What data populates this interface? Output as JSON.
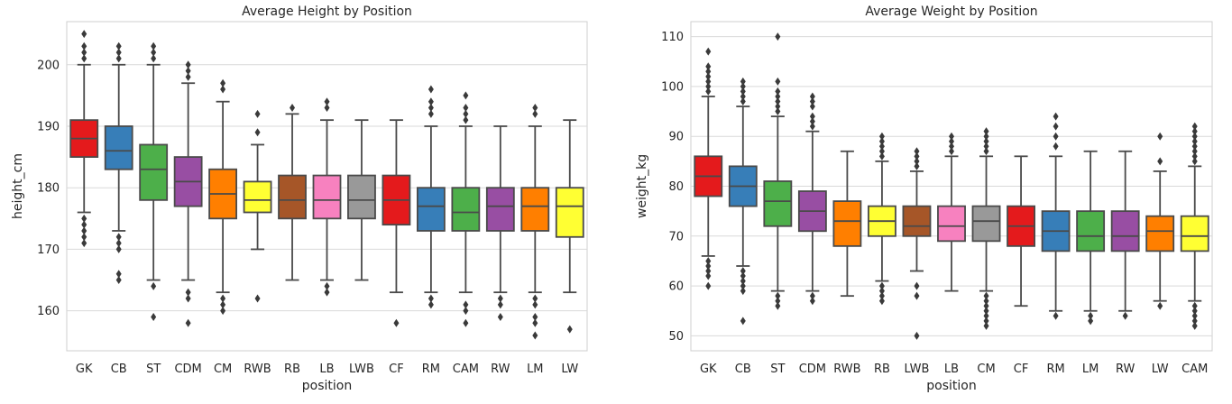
{
  "palette": [
    "#e41a1c",
    "#377eb8",
    "#4daf4a",
    "#984ea3",
    "#ff7f00",
    "#ffff33",
    "#a65628",
    "#f781bf",
    "#999999"
  ],
  "frame_color": "#cfcfcf",
  "grid_color": "#d9d9d9",
  "box_edge_color": "#4a4a4a",
  "chart_data": [
    {
      "type": "box",
      "title": "Average Height by Position",
      "xlabel": "position",
      "ylabel": "height_cm",
      "ylim": [
        153.5,
        207
      ],
      "yticks": [
        160,
        170,
        180,
        190,
        200
      ],
      "grid": "horizontal",
      "categories": [
        "GK",
        "CB",
        "ST",
        "CDM",
        "CM",
        "RWB",
        "RB",
        "LB",
        "LWB",
        "CF",
        "RM",
        "CAM",
        "RW",
        "LM",
        "LW"
      ],
      "boxes": [
        {
          "q1": 185,
          "median": 188,
          "q3": 191,
          "whislo": 176,
          "whishi": 200,
          "fliers": [
            171,
            172,
            173,
            174,
            175,
            201,
            202,
            203,
            205
          ]
        },
        {
          "q1": 183,
          "median": 186,
          "q3": 190,
          "whislo": 173,
          "whishi": 200,
          "fliers": [
            165,
            166,
            170,
            171,
            172,
            201,
            202,
            203
          ]
        },
        {
          "q1": 178,
          "median": 183,
          "q3": 187,
          "whislo": 165,
          "whishi": 200,
          "fliers": [
            159,
            164,
            201,
            202,
            203
          ]
        },
        {
          "q1": 177,
          "median": 181,
          "q3": 185,
          "whislo": 165,
          "whishi": 197,
          "fliers": [
            158,
            162,
            163,
            198,
            199,
            200
          ]
        },
        {
          "q1": 175,
          "median": 179,
          "q3": 183,
          "whislo": 163,
          "whishi": 194,
          "fliers": [
            160,
            161,
            162,
            196,
            197
          ]
        },
        {
          "q1": 176,
          "median": 178,
          "q3": 181,
          "whislo": 170,
          "whishi": 187,
          "fliers": [
            162,
            189,
            192
          ]
        },
        {
          "q1": 175,
          "median": 178,
          "q3": 182,
          "whislo": 165,
          "whishi": 192,
          "fliers": [
            193
          ]
        },
        {
          "q1": 175,
          "median": 178,
          "q3": 182,
          "whislo": 165,
          "whishi": 191,
          "fliers": [
            163,
            164,
            193,
            194
          ]
        },
        {
          "q1": 175,
          "median": 178,
          "q3": 182,
          "whislo": 165,
          "whishi": 191,
          "fliers": []
        },
        {
          "q1": 174,
          "median": 178,
          "q3": 182,
          "whislo": 163,
          "whishi": 191,
          "fliers": [
            158
          ]
        },
        {
          "q1": 173,
          "median": 177,
          "q3": 180,
          "whislo": 163,
          "whishi": 190,
          "fliers": [
            161,
            162,
            192,
            193,
            194,
            196
          ]
        },
        {
          "q1": 173,
          "median": 176,
          "q3": 180,
          "whislo": 163,
          "whishi": 190,
          "fliers": [
            158,
            160,
            161,
            191,
            192,
            193,
            195
          ]
        },
        {
          "q1": 173,
          "median": 177,
          "q3": 180,
          "whislo": 163,
          "whishi": 190,
          "fliers": [
            159,
            161,
            162
          ]
        },
        {
          "q1": 173,
          "median": 177,
          "q3": 180,
          "whislo": 163,
          "whishi": 190,
          "fliers": [
            156,
            158,
            159,
            161,
            162,
            192,
            193
          ]
        },
        {
          "q1": 172,
          "median": 177,
          "q3": 180,
          "whislo": 163,
          "whishi": 191,
          "fliers": [
            157
          ]
        }
      ]
    },
    {
      "type": "box",
      "title": "Average Weight by Position",
      "xlabel": "position",
      "ylabel": "weight_kg",
      "ylim": [
        47,
        113
      ],
      "yticks": [
        50,
        60,
        70,
        80,
        90,
        100,
        110
      ],
      "grid": "horizontal",
      "categories": [
        "GK",
        "CB",
        "ST",
        "CDM",
        "RWB",
        "RB",
        "LWB",
        "LB",
        "CM",
        "CF",
        "RM",
        "LM",
        "RW",
        "LW",
        "CAM"
      ],
      "boxes": [
        {
          "q1": 78,
          "median": 82,
          "q3": 86,
          "whislo": 66,
          "whishi": 98,
          "fliers": [
            60,
            62,
            63,
            64,
            65,
            99,
            100,
            101,
            102,
            103,
            104,
            107
          ]
        },
        {
          "q1": 76,
          "median": 80,
          "q3": 84,
          "whislo": 64,
          "whishi": 96,
          "fliers": [
            53,
            59,
            60,
            61,
            62,
            63,
            97,
            98,
            99,
            100,
            101
          ]
        },
        {
          "q1": 72,
          "median": 77,
          "q3": 81,
          "whislo": 59,
          "whishi": 94,
          "fliers": [
            56,
            57,
            58,
            95,
            96,
            97,
            98,
            99,
            101,
            110
          ]
        },
        {
          "q1": 71,
          "median": 75,
          "q3": 79,
          "whislo": 59,
          "whishi": 91,
          "fliers": [
            57,
            58,
            92,
            93,
            94,
            96,
            97,
            98
          ]
        },
        {
          "q1": 68,
          "median": 73,
          "q3": 77,
          "whislo": 58,
          "whishi": 87,
          "fliers": []
        },
        {
          "q1": 70,
          "median": 73,
          "q3": 76,
          "whislo": 61,
          "whishi": 85,
          "fliers": [
            57,
            58,
            59,
            60,
            86,
            87,
            88,
            89,
            90
          ]
        },
        {
          "q1": 70,
          "median": 72,
          "q3": 76,
          "whislo": 63,
          "whishi": 83,
          "fliers": [
            50,
            58,
            60,
            84,
            85,
            86,
            87
          ]
        },
        {
          "q1": 69,
          "median": 72,
          "q3": 76,
          "whislo": 59,
          "whishi": 86,
          "fliers": [
            87,
            88,
            89,
            90
          ]
        },
        {
          "q1": 69,
          "median": 73,
          "q3": 76,
          "whislo": 59,
          "whishi": 86,
          "fliers": [
            52,
            53,
            54,
            55,
            56,
            57,
            58,
            87,
            88,
            89,
            90,
            91
          ]
        },
        {
          "q1": 68,
          "median": 72,
          "q3": 76,
          "whislo": 56,
          "whishi": 86,
          "fliers": []
        },
        {
          "q1": 67,
          "median": 71,
          "q3": 75,
          "whislo": 55,
          "whishi": 86,
          "fliers": [
            54,
            88,
            90,
            92,
            94
          ]
        },
        {
          "q1": 67,
          "median": 70,
          "q3": 75,
          "whislo": 55,
          "whishi": 87,
          "fliers": [
            53,
            54
          ]
        },
        {
          "q1": 67,
          "median": 70,
          "q3": 75,
          "whislo": 55,
          "whishi": 87,
          "fliers": [
            54
          ]
        },
        {
          "q1": 67,
          "median": 71,
          "q3": 74,
          "whislo": 57,
          "whishi": 83,
          "fliers": [
            56,
            85,
            90
          ]
        },
        {
          "q1": 67,
          "median": 70,
          "q3": 74,
          "whislo": 57,
          "whishi": 84,
          "fliers": [
            52,
            53,
            54,
            55,
            56,
            85,
            86,
            87,
            88,
            89,
            90,
            91,
            92
          ]
        }
      ]
    }
  ]
}
